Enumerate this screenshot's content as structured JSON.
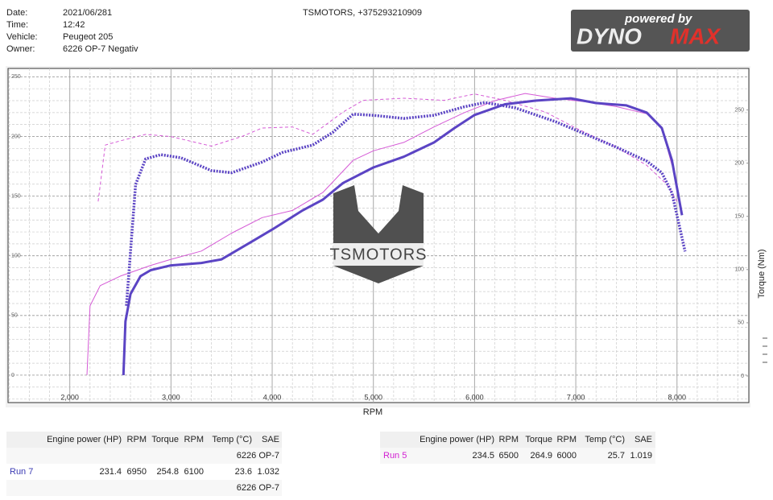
{
  "header": {
    "fields": [
      {
        "label": "Date:",
        "value": "2021/06/281"
      },
      {
        "label": "Time:",
        "value": "12:42"
      },
      {
        "label": "Vehicle:",
        "value": "Peugeot 205"
      },
      {
        "label": "Owner:",
        "value": "6226 OP-7 Negativ"
      }
    ],
    "shop": "TSMOTORS, +375293210909"
  },
  "logo": {
    "tagline": "powered by",
    "brand_a": "DYNO",
    "brand_b": "MAX"
  },
  "watermark": "TSMOTORS",
  "chart_data": {
    "type": "line",
    "x_label": "RPM",
    "y2_label": "Torque (Nm)",
    "xlim": [
      1390,
      8710
    ],
    "xticks": [
      {
        "value": 2000,
        "label": "2,000"
      },
      {
        "value": 3000,
        "label": "3,000"
      },
      {
        "value": 4000,
        "label": "4,000"
      },
      {
        "value": 5000,
        "label": "5,000"
      },
      {
        "value": 6000,
        "label": "6,000"
      },
      {
        "value": 7000,
        "label": "7,000"
      },
      {
        "value": 8000,
        "label": "8,000"
      }
    ],
    "ylim": [
      -23,
      257
    ],
    "yticks": [
      0,
      50,
      100,
      150,
      200,
      250
    ],
    "y2lim": [
      -25,
      289
    ],
    "y2ticks": [
      0,
      50,
      100,
      150,
      200,
      250
    ],
    "grid": true,
    "series": [
      {
        "color": "#d55ad6",
        "line_style": "solid",
        "x": [
          2170,
          2200,
          2300,
          2500,
          2800,
          3000,
          3300,
          3600,
          3900,
          4200,
          4500,
          4800,
          5000,
          5300,
          5600,
          5900,
          6200,
          6500,
          6800,
          7100,
          7400,
          7700,
          7850,
          7950
        ],
        "values": [
          0,
          58,
          75,
          83,
          92,
          97,
          104,
          119,
          132,
          138,
          153,
          180,
          188,
          195,
          208,
          220,
          230,
          236,
          232,
          229,
          225,
          219,
          207,
          176
        ]
      },
      {
        "color": "#d55ad6",
        "line_style": "dashed",
        "axis": "y2",
        "x": [
          2280,
          2350,
          2500,
          2750,
          3000,
          3400,
          3700,
          3900,
          4200,
          4400,
          4700,
          4900,
          5300,
          5700,
          6000,
          6300,
          6700,
          7000,
          7400,
          7700,
          7900,
          8000
        ],
        "values": [
          164,
          217,
          221,
          227,
          225,
          216,
          225,
          233,
          234,
          227,
          248,
          259,
          261,
          259,
          265,
          259,
          248,
          233,
          215,
          198,
          180,
          164
        ]
      },
      {
        "color": "#5b44c4",
        "line_style": "solid-bold",
        "x": [
          2530,
          2550,
          2600,
          2700,
          2800,
          3000,
          3300,
          3500,
          3800,
          4000,
          4300,
          4500,
          4700,
          5000,
          5300,
          5600,
          5800,
          6000,
          6300,
          6600,
          6950,
          7200,
          7500,
          7700,
          7850,
          7950,
          8050
        ],
        "values": [
          0,
          45,
          68,
          83,
          88,
          92,
          94,
          97,
          112,
          122,
          138,
          147,
          161,
          174,
          183,
          195,
          207,
          218,
          227,
          230,
          232,
          228,
          226,
          220,
          207,
          180,
          134
        ]
      },
      {
        "color": "#5b44c4",
        "line_style": "dotted-bold",
        "axis": "y2",
        "x": [
          2560,
          2650,
          2750,
          2900,
          3100,
          3400,
          3600,
          3900,
          4100,
          4400,
          4600,
          4800,
          5000,
          5300,
          5600,
          5900,
          6100,
          6400,
          6800,
          7100,
          7400,
          7700,
          7850,
          7950,
          8080
        ],
        "values": [
          66,
          180,
          204,
          208,
          205,
          193,
          191,
          201,
          210,
          217,
          229,
          246,
          245,
          242,
          245,
          253,
          257,
          252,
          239,
          227,
          215,
          202,
          191,
          172,
          117
        ]
      }
    ]
  },
  "tables": [
    {
      "columns": [
        "Engine power (HP)",
        "RPM",
        "Torque",
        "RPM",
        "Temp (°C)",
        "SAE"
      ],
      "rows": [
        {
          "note": "6226 OP-7"
        },
        {
          "label": "Run 7",
          "color": "#3b3bb3",
          "cells": [
            231.4,
            6950,
            254.8,
            6100,
            23.6,
            1.032
          ]
        },
        {
          "note": "6226 OP-7"
        }
      ]
    },
    {
      "columns": [
        "Engine power (HP)",
        "RPM",
        "Torque",
        "RPM",
        "Temp (°C)",
        "SAE"
      ],
      "rows": [
        {
          "label": "Run 5",
          "color": "#d21fd2",
          "cells": [
            234.5,
            6500,
            264.9,
            6000,
            25.7,
            1.019
          ]
        }
      ]
    }
  ]
}
